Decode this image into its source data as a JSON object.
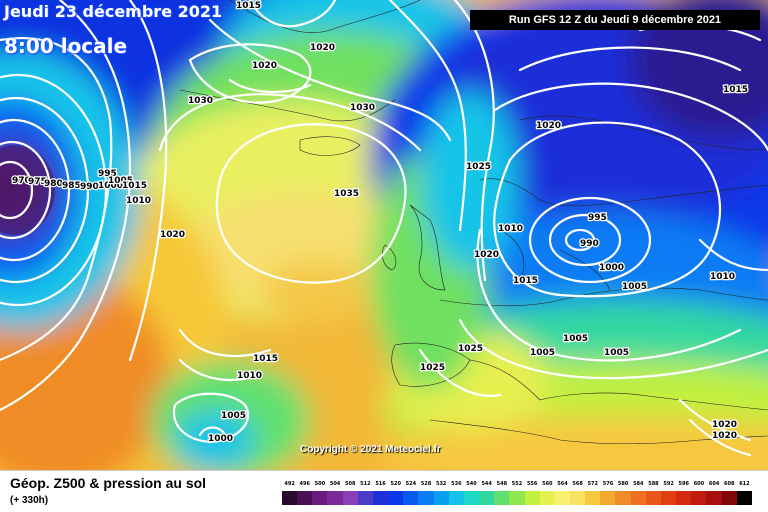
{
  "header": {
    "date": "Jeudi 23 décembre 2021",
    "time": "8:00 locale",
    "run": "Run GFS 12 Z du Jeudi 9 décembre 2021"
  },
  "copyright": "Copyright © 2021 Meteociel.fr",
  "footer": {
    "title": "Géop. Z500 & pression au sol",
    "subtitle": "(+ 330h)"
  },
  "isobar_labels": [
    "1015",
    "1020",
    "1020",
    "1030",
    "1030",
    "1020",
    "1025",
    "1015",
    "970",
    "975",
    "980",
    "985",
    "990",
    "995",
    "1000",
    "1005",
    "1010",
    "1015",
    "1020",
    "1035",
    "995",
    "990",
    "1000",
    "1010",
    "1020",
    "1015",
    "1005",
    "1010",
    "1005",
    "1005",
    "1005",
    "1025",
    "1025",
    "1015",
    "1010",
    "1005",
    "1000",
    "1020",
    "1020"
  ],
  "scale": {
    "labels": [
      "492",
      "496",
      "500",
      "504",
      "508",
      "512",
      "516",
      "520",
      "524",
      "528",
      "532",
      "536",
      "540",
      "544",
      "548",
      "552",
      "556",
      "560",
      "564",
      "568",
      "572",
      "576",
      "580",
      "584",
      "588",
      "592",
      "596",
      "600",
      "604",
      "608",
      "612"
    ],
    "colors": [
      "#2a0b2e",
      "#4b0f55",
      "#6a1a7a",
      "#7a2a9a",
      "#8a3fb8",
      "#4a3cc8",
      "#1e2fd8",
      "#0a38e8",
      "#0a5af0",
      "#0a7cf4",
      "#0aa0f2",
      "#13c4e8",
      "#1ed8c8",
      "#30d8a0",
      "#60e070",
      "#90e850",
      "#c0f040",
      "#e6f050",
      "#f8f070",
      "#f8e060",
      "#f6c840",
      "#f4a830",
      "#f08c28",
      "#ee7020",
      "#e85818",
      "#e04010",
      "#d42a10",
      "#c01c10",
      "#a81010",
      "#800808",
      "#000000"
    ]
  }
}
